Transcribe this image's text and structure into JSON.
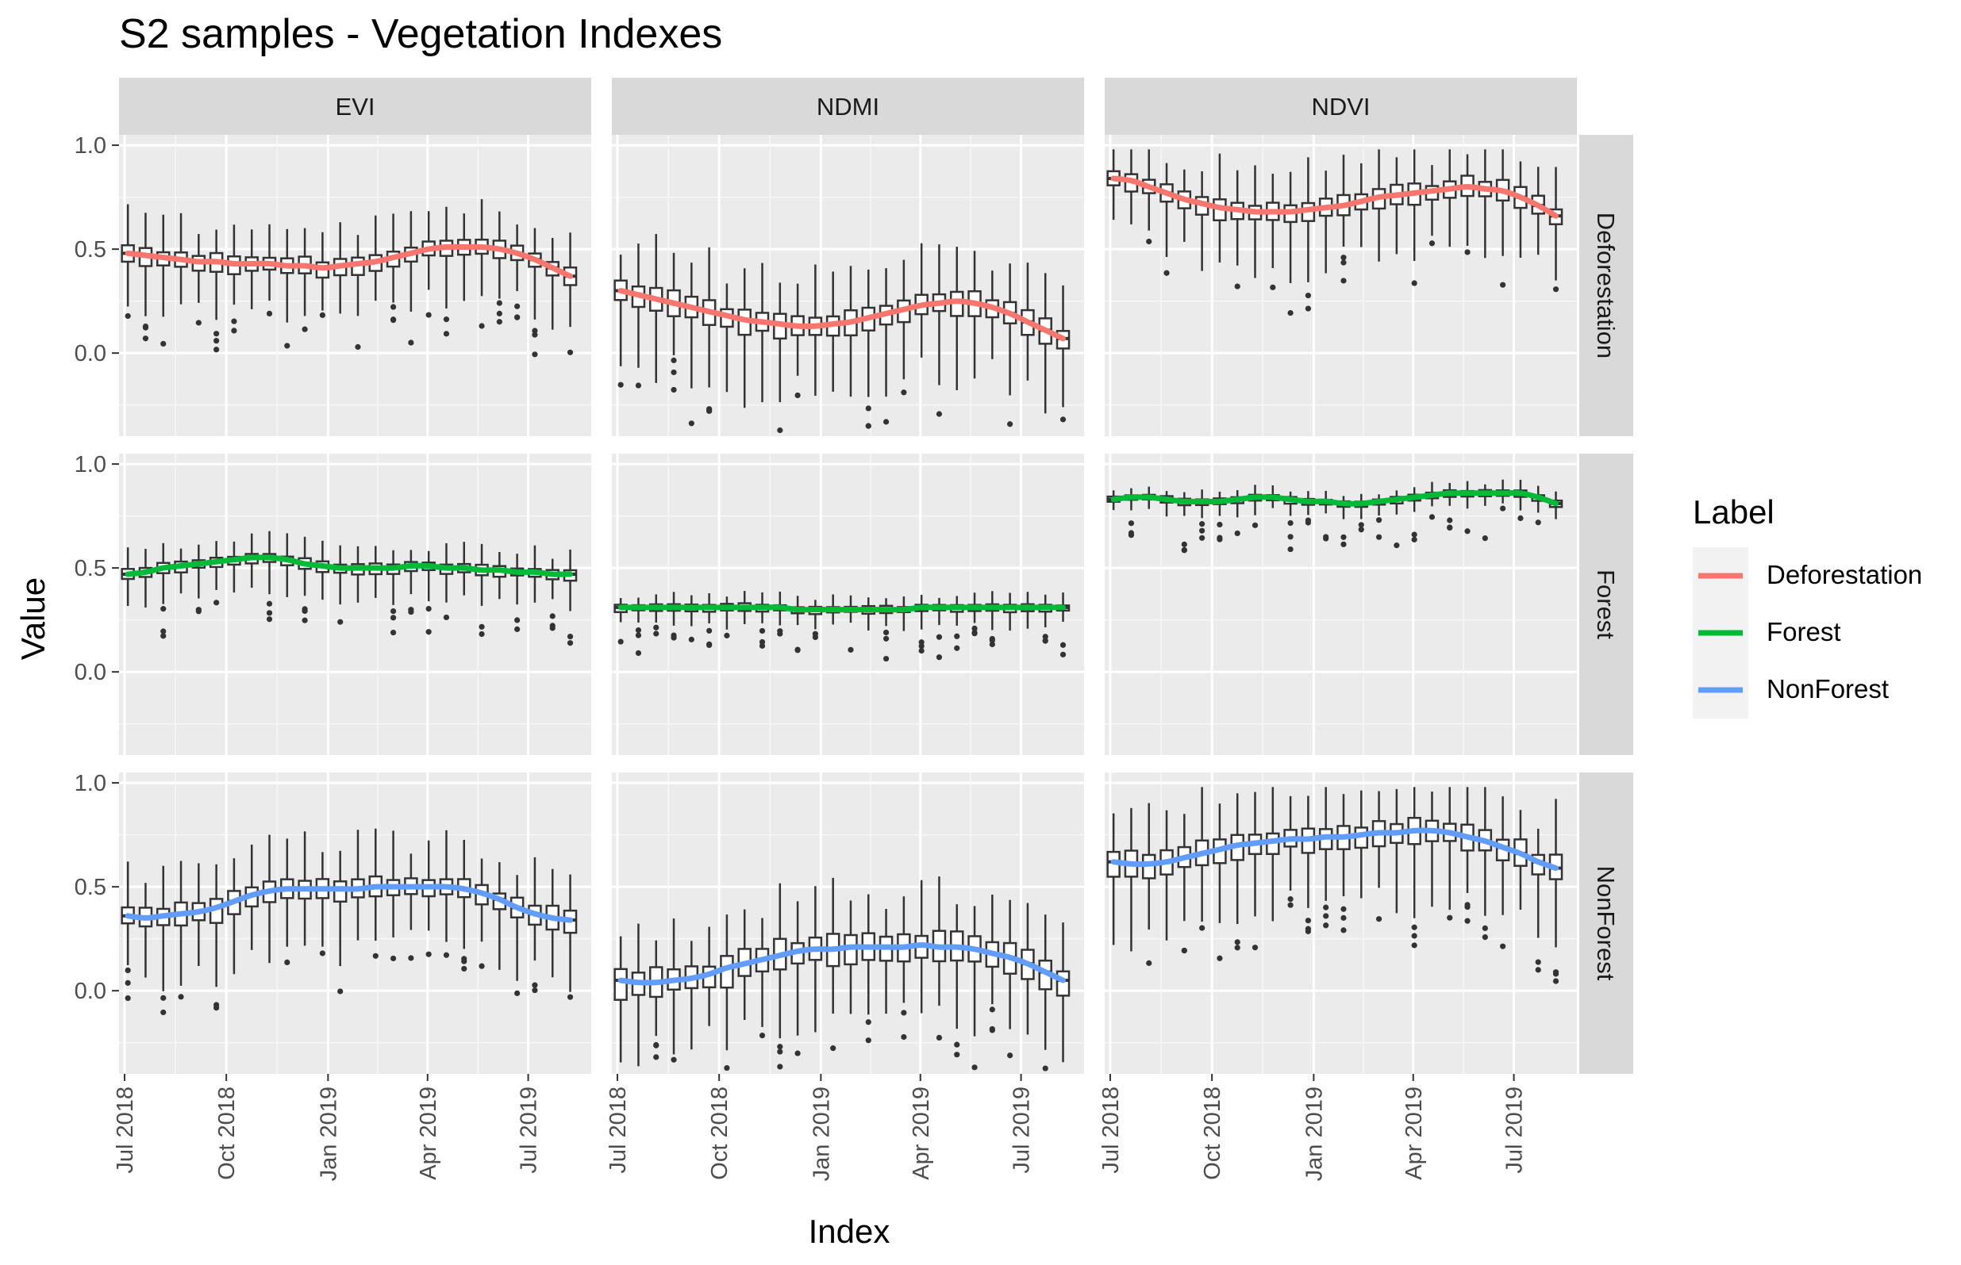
{
  "chart_data": {
    "type": "boxplot-facet",
    "title": "S2 samples - Vegetation Indexes",
    "xlabel": "Index",
    "ylabel": "Value",
    "x_ticks": [
      "Jul 2018",
      "Oct 2018",
      "Jan 2019",
      "Apr 2019",
      "Jul 2019"
    ],
    "x_tick_dates": [
      "2018-07-01",
      "2018-10-01",
      "2019-01-01",
      "2019-04-01",
      "2019-07-01"
    ],
    "x_range": [
      "2018-06-26",
      "2019-08-27"
    ],
    "y_ticks": [
      0.0,
      0.5,
      1.0
    ],
    "y_tick_labels": [
      "0.0",
      "0.5",
      "1.0"
    ],
    "ylim": [
      -0.4,
      1.05
    ],
    "grid": true,
    "legend": {
      "title": "Label",
      "position": "right",
      "entries": [
        {
          "name": "Deforestation",
          "color": "#F8766D"
        },
        {
          "name": "Forest",
          "color": "#00BA38"
        },
        {
          "name": "NonForest",
          "color": "#619CFF"
        }
      ]
    },
    "columns": [
      "EVI",
      "NDMI",
      "NDVI"
    ],
    "rows": [
      "Deforestation",
      "Forest",
      "NonForest"
    ],
    "dates": [
      "2018-07-04",
      "2018-07-20",
      "2018-08-05",
      "2018-08-21",
      "2018-09-06",
      "2018-09-22",
      "2018-10-08",
      "2018-10-24",
      "2018-11-09",
      "2018-11-25",
      "2018-12-11",
      "2018-12-27",
      "2019-01-12",
      "2019-01-28",
      "2019-02-13",
      "2019-03-01",
      "2019-03-17",
      "2019-04-02",
      "2019-04-18",
      "2019-05-04",
      "2019-05-20",
      "2019-06-05",
      "2019-06-21",
      "2019-07-07",
      "2019-07-23",
      "2019-08-08"
    ],
    "medians": {
      "EVI": {
        "Deforestation": [
          0.48,
          0.47,
          0.46,
          0.45,
          0.44,
          0.44,
          0.43,
          0.43,
          0.43,
          0.42,
          0.42,
          0.41,
          0.42,
          0.43,
          0.44,
          0.46,
          0.48,
          0.5,
          0.51,
          0.51,
          0.51,
          0.5,
          0.48,
          0.45,
          0.41,
          0.37
        ],
        "Forest": [
          0.47,
          0.48,
          0.5,
          0.51,
          0.52,
          0.53,
          0.54,
          0.55,
          0.55,
          0.54,
          0.52,
          0.51,
          0.5,
          0.5,
          0.5,
          0.5,
          0.51,
          0.51,
          0.5,
          0.5,
          0.49,
          0.49,
          0.48,
          0.48,
          0.47,
          0.47
        ],
        "NonForest": [
          0.36,
          0.35,
          0.36,
          0.37,
          0.38,
          0.4,
          0.43,
          0.46,
          0.48,
          0.49,
          0.49,
          0.49,
          0.49,
          0.49,
          0.5,
          0.5,
          0.5,
          0.5,
          0.5,
          0.49,
          0.47,
          0.44,
          0.4,
          0.37,
          0.35,
          0.34
        ]
      },
      "NDMI": {
        "Deforestation": [
          0.3,
          0.28,
          0.26,
          0.24,
          0.22,
          0.2,
          0.18,
          0.16,
          0.15,
          0.14,
          0.13,
          0.13,
          0.14,
          0.15,
          0.17,
          0.19,
          0.21,
          0.23,
          0.24,
          0.25,
          0.24,
          0.22,
          0.19,
          0.15,
          0.11,
          0.07
        ],
        "Forest": [
          0.31,
          0.31,
          0.31,
          0.31,
          0.31,
          0.31,
          0.31,
          0.31,
          0.31,
          0.31,
          0.3,
          0.3,
          0.3,
          0.3,
          0.3,
          0.3,
          0.3,
          0.31,
          0.31,
          0.31,
          0.31,
          0.31,
          0.31,
          0.31,
          0.31,
          0.31
        ],
        "NonForest": [
          0.05,
          0.04,
          0.04,
          0.05,
          0.06,
          0.08,
          0.11,
          0.13,
          0.15,
          0.17,
          0.19,
          0.2,
          0.2,
          0.21,
          0.21,
          0.21,
          0.21,
          0.22,
          0.21,
          0.21,
          0.2,
          0.18,
          0.16,
          0.13,
          0.09,
          0.05
        ]
      },
      "NDVI": {
        "Deforestation": [
          0.84,
          0.83,
          0.8,
          0.77,
          0.74,
          0.72,
          0.7,
          0.69,
          0.68,
          0.68,
          0.68,
          0.69,
          0.7,
          0.71,
          0.73,
          0.75,
          0.76,
          0.77,
          0.78,
          0.79,
          0.8,
          0.79,
          0.78,
          0.75,
          0.71,
          0.66
        ],
        "Forest": [
          0.83,
          0.84,
          0.84,
          0.83,
          0.82,
          0.82,
          0.82,
          0.83,
          0.84,
          0.84,
          0.83,
          0.82,
          0.82,
          0.81,
          0.81,
          0.82,
          0.83,
          0.84,
          0.85,
          0.86,
          0.86,
          0.86,
          0.86,
          0.86,
          0.84,
          0.81
        ],
        "NonForest": [
          0.62,
          0.61,
          0.61,
          0.62,
          0.64,
          0.66,
          0.68,
          0.7,
          0.71,
          0.72,
          0.73,
          0.73,
          0.74,
          0.74,
          0.75,
          0.76,
          0.76,
          0.77,
          0.77,
          0.76,
          0.74,
          0.72,
          0.69,
          0.66,
          0.62,
          0.59
        ]
      }
    }
  }
}
